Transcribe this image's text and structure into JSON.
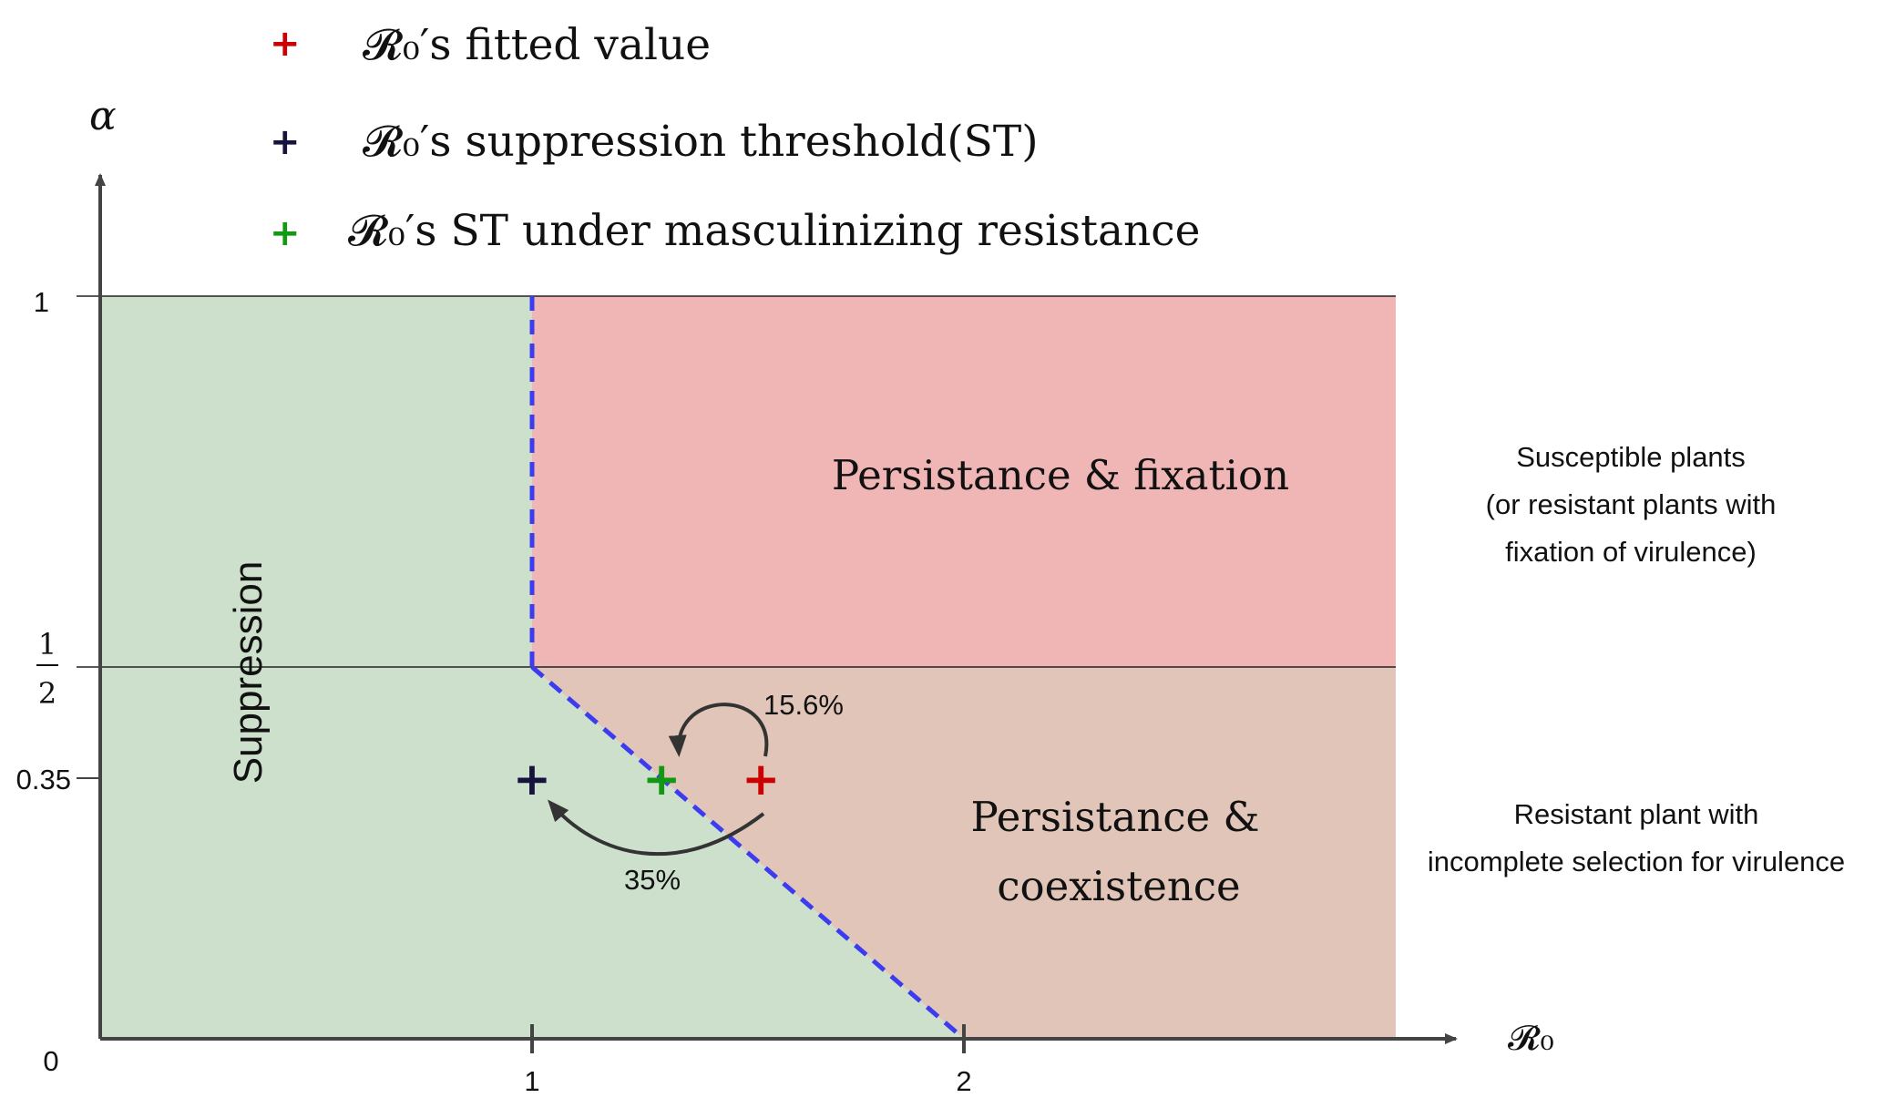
{
  "legend": {
    "items": [
      {
        "marker": "+",
        "color": "#cc0000",
        "label": "𝓡₀′s fitted value"
      },
      {
        "marker": "+",
        "color": "#14143c",
        "label": "𝓡₀′s suppression threshold(ST)"
      },
      {
        "marker": "+",
        "color": "#119911",
        "label": "𝓡₀′s ST under masculinizing resistance"
      }
    ]
  },
  "axes": {
    "x_label": "𝓡₀",
    "y_label": "α",
    "x_ticks": [
      "1",
      "2"
    ],
    "y_ticks": [
      "1",
      "0.35"
    ],
    "y_tick_half_num": "1",
    "y_tick_half_den": "2",
    "origin_label": "0"
  },
  "regions": {
    "suppression": "Suppression",
    "fixation": "Persistance & fixation",
    "coexistence_line1": "Persistance &",
    "coexistence_line2": "coexistence"
  },
  "annotations": {
    "arrow_top_pct": "15.6%",
    "arrow_bottom_pct": "35%"
  },
  "side_notes": {
    "top": [
      "Susceptible plants",
      "(or resistant plants with",
      "fixation of virulence)"
    ],
    "bottom": [
      "Resistant plant with",
      "incomplete selection for virulence"
    ]
  },
  "colors": {
    "suppression_fill": "#cde0cc",
    "fixation_fill": "#f0b5b5",
    "coexistence_fill": "#e1c5b8",
    "boundary": "#3b3bef",
    "axis": "#444444",
    "fitted": "#cc0000",
    "threshold": "#14143c",
    "masculinizing": "#119911"
  },
  "points": {
    "fitted": {
      "R0": 1.53,
      "alpha": 0.35
    },
    "threshold": {
      "R0": 1.0,
      "alpha": 0.35
    },
    "masculinizing": {
      "R0": 1.3,
      "alpha": 0.35
    }
  }
}
